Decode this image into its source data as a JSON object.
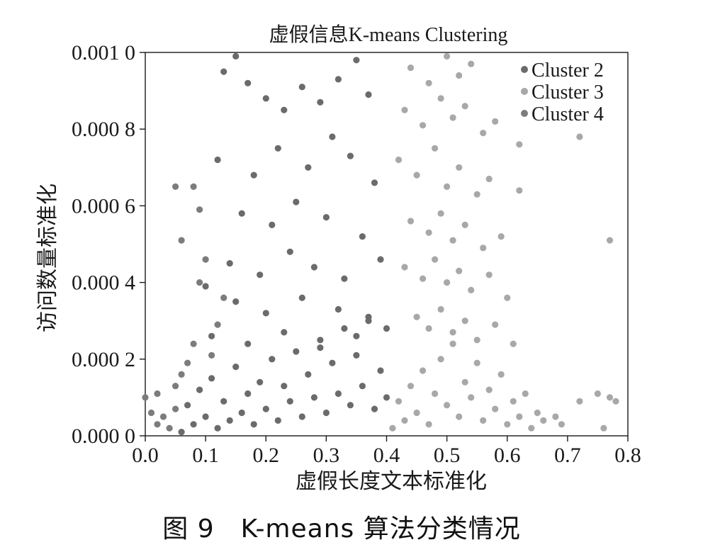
{
  "chart_data": {
    "type": "scatter",
    "title": "虚假信息K-means Clustering",
    "xlabel": "虚假长度文本标准化",
    "ylabel": "访问数量标准化",
    "xlim": [
      0.0,
      0.8
    ],
    "ylim": [
      0.0,
      0.001
    ],
    "xticks": [
      0.0,
      0.1,
      0.2,
      0.3,
      0.4,
      0.5,
      0.6,
      0.7,
      0.8
    ],
    "xtick_labels": [
      "0.0",
      "0.1",
      "0.2",
      "0.3",
      "0.4",
      "0.5",
      "0.6",
      "0.7",
      "0.8"
    ],
    "yticks": [
      0.0,
      0.0002,
      0.0004,
      0.0006,
      0.0008,
      0.001
    ],
    "ytick_labels": [
      "0.000 0",
      "0.000 2",
      "0.000 4",
      "0.000 6",
      "0.000 8",
      "0.001 0"
    ],
    "grid": false,
    "legend_position": "top-right",
    "series": [
      {
        "name": "Cluster 2",
        "color": "#6b6b6b",
        "points": [
          [
            0.06,
            1e-05
          ],
          [
            0.07,
            8e-05
          ],
          [
            0.08,
            3e-05
          ],
          [
            0.09,
            0.00012
          ],
          [
            0.1,
            5e-05
          ],
          [
            0.11,
            0.00015
          ],
          [
            0.12,
            2e-05
          ],
          [
            0.13,
            9e-05
          ],
          [
            0.14,
            4e-05
          ],
          [
            0.15,
            0.00018
          ],
          [
            0.16,
            6e-05
          ],
          [
            0.17,
            0.00011
          ],
          [
            0.18,
            3e-05
          ],
          [
            0.19,
            0.00014
          ],
          [
            0.2,
            7e-05
          ],
          [
            0.21,
            0.0002
          ],
          [
            0.22,
            4e-05
          ],
          [
            0.23,
            0.00013
          ],
          [
            0.24,
            9e-05
          ],
          [
            0.25,
            0.00022
          ],
          [
            0.26,
            5e-05
          ],
          [
            0.27,
            0.00016
          ],
          [
            0.28,
            0.0001
          ],
          [
            0.29,
            0.00025
          ],
          [
            0.3,
            6e-05
          ],
          [
            0.31,
            0.00019
          ],
          [
            0.32,
            0.00011
          ],
          [
            0.33,
            0.00028
          ],
          [
            0.34,
            8e-05
          ],
          [
            0.35,
            0.00021
          ],
          [
            0.36,
            0.00013
          ],
          [
            0.37,
            0.0003
          ],
          [
            0.38,
            7e-05
          ],
          [
            0.39,
            0.00017
          ],
          [
            0.4,
            0.0001
          ],
          [
            0.13,
            0.00095
          ],
          [
            0.15,
            0.00099
          ],
          [
            0.17,
            0.00092
          ],
          [
            0.2,
            0.00088
          ],
          [
            0.23,
            0.00085
          ],
          [
            0.26,
            0.00091
          ],
          [
            0.29,
            0.00087
          ],
          [
            0.32,
            0.00093
          ],
          [
            0.35,
            0.00098
          ],
          [
            0.37,
            0.00089
          ],
          [
            0.12,
            0.00072
          ],
          [
            0.18,
            0.00068
          ],
          [
            0.22,
            0.00075
          ],
          [
            0.27,
            0.0007
          ],
          [
            0.31,
            0.00078
          ],
          [
            0.34,
            0.00073
          ],
          [
            0.38,
            0.00066
          ],
          [
            0.16,
            0.00058
          ],
          [
            0.21,
            0.00055
          ],
          [
            0.25,
            0.00061
          ],
          [
            0.3,
            0.00057
          ],
          [
            0.36,
            0.00052
          ],
          [
            0.14,
            0.00045
          ],
          [
            0.19,
            0.00042
          ],
          [
            0.24,
            0.00048
          ],
          [
            0.28,
            0.00044
          ],
          [
            0.33,
            0.00041
          ],
          [
            0.39,
            0.00046
          ],
          [
            0.1,
            0.00039
          ],
          [
            0.15,
            0.00035
          ],
          [
            0.2,
            0.00032
          ],
          [
            0.26,
            0.00036
          ],
          [
            0.32,
            0.00033
          ],
          [
            0.37,
            0.00031
          ],
          [
            0.11,
            0.00026
          ],
          [
            0.17,
            0.00024
          ],
          [
            0.23,
            0.00027
          ],
          [
            0.29,
            0.00023
          ],
          [
            0.35,
            0.00026
          ],
          [
            0.4,
            0.00028
          ]
        ]
      },
      {
        "name": "Cluster 3",
        "color": "#a8a8a8",
        "points": [
          [
            0.41,
            2e-05
          ],
          [
            0.42,
            9e-05
          ],
          [
            0.43,
            4e-05
          ],
          [
            0.44,
            0.00013
          ],
          [
            0.45,
            6e-05
          ],
          [
            0.46,
            0.00017
          ],
          [
            0.47,
            3e-05
          ],
          [
            0.48,
            0.00011
          ],
          [
            0.49,
            0.0002
          ],
          [
            0.5,
            8e-05
          ],
          [
            0.51,
            0.00024
          ],
          [
            0.52,
            5e-05
          ],
          [
            0.53,
            0.00014
          ],
          [
            0.54,
            0.0001
          ],
          [
            0.55,
            0.00019
          ],
          [
            0.56,
            4e-05
          ],
          [
            0.57,
            0.00012
          ],
          [
            0.58,
            7e-05
          ],
          [
            0.59,
            0.00016
          ],
          [
            0.6,
            3e-05
          ],
          [
            0.61,
            9e-05
          ],
          [
            0.62,
            5e-05
          ],
          [
            0.63,
            0.00011
          ],
          [
            0.64,
            2e-05
          ],
          [
            0.65,
            6e-05
          ],
          [
            0.66,
            4e-05
          ],
          [
            0.68,
            5e-05
          ],
          [
            0.69,
            3e-05
          ],
          [
            0.72,
            9e-05
          ],
          [
            0.75,
            0.00011
          ],
          [
            0.76,
            2e-05
          ],
          [
            0.77,
            0.0001
          ],
          [
            0.78,
            9e-05
          ],
          [
            0.72,
            0.00078
          ],
          [
            0.77,
            0.00051
          ],
          [
            0.44,
            0.00096
          ],
          [
            0.47,
            0.00092
          ],
          [
            0.5,
            0.00099
          ],
          [
            0.52,
            0.00094
          ],
          [
            0.54,
            0.00097
          ],
          [
            0.43,
            0.00085
          ],
          [
            0.46,
            0.00081
          ],
          [
            0.49,
            0.00088
          ],
          [
            0.51,
            0.00083
          ],
          [
            0.53,
            0.00086
          ],
          [
            0.56,
            0.00079
          ],
          [
            0.58,
            0.00082
          ],
          [
            0.42,
            0.00072
          ],
          [
            0.45,
            0.00068
          ],
          [
            0.48,
            0.00075
          ],
          [
            0.5,
            0.00065
          ],
          [
            0.52,
            0.0007
          ],
          [
            0.55,
            0.00063
          ],
          [
            0.57,
            0.00067
          ],
          [
            0.44,
            0.00056
          ],
          [
            0.47,
            0.00053
          ],
          [
            0.49,
            0.00058
          ],
          [
            0.51,
            0.00051
          ],
          [
            0.53,
            0.00055
          ],
          [
            0.56,
            0.00049
          ],
          [
            0.59,
            0.00052
          ],
          [
            0.43,
            0.00044
          ],
          [
            0.46,
            0.00041
          ],
          [
            0.48,
            0.00046
          ],
          [
            0.5,
            0.0004
          ],
          [
            0.52,
            0.00043
          ],
          [
            0.54,
            0.00038
          ],
          [
            0.57,
            0.00042
          ],
          [
            0.6,
            0.00036
          ],
          [
            0.45,
            0.00031
          ],
          [
            0.47,
            0.00028
          ],
          [
            0.49,
            0.00033
          ],
          [
            0.51,
            0.00027
          ],
          [
            0.53,
            0.0003
          ],
          [
            0.55,
            0.00025
          ],
          [
            0.58,
            0.00029
          ],
          [
            0.61,
            0.00024
          ],
          [
            0.62,
            0.00076
          ],
          [
            0.62,
            0.00064
          ]
        ]
      },
      {
        "name": "Cluster 4",
        "color": "#7c7c7c",
        "points": [
          [
            0.0,
            0.0001
          ],
          [
            0.01,
            6e-05
          ],
          [
            0.02,
            3e-05
          ],
          [
            0.02,
            0.00011
          ],
          [
            0.03,
            5e-05
          ],
          [
            0.04,
            2e-05
          ],
          [
            0.05,
            7e-05
          ],
          [
            0.05,
            0.00065
          ],
          [
            0.06,
            0.00051
          ],
          [
            0.08,
            0.00065
          ],
          [
            0.09,
            0.00059
          ],
          [
            0.09,
            0.0004
          ],
          [
            0.1,
            0.00046
          ],
          [
            0.08,
            0.00024
          ],
          [
            0.07,
            0.00019
          ],
          [
            0.06,
            0.00016
          ],
          [
            0.05,
            0.00013
          ],
          [
            0.11,
            0.00021
          ],
          [
            0.12,
            0.00029
          ],
          [
            0.13,
            0.00036
          ]
        ]
      }
    ]
  },
  "caption": "图 9　K-means 算法分类情况"
}
